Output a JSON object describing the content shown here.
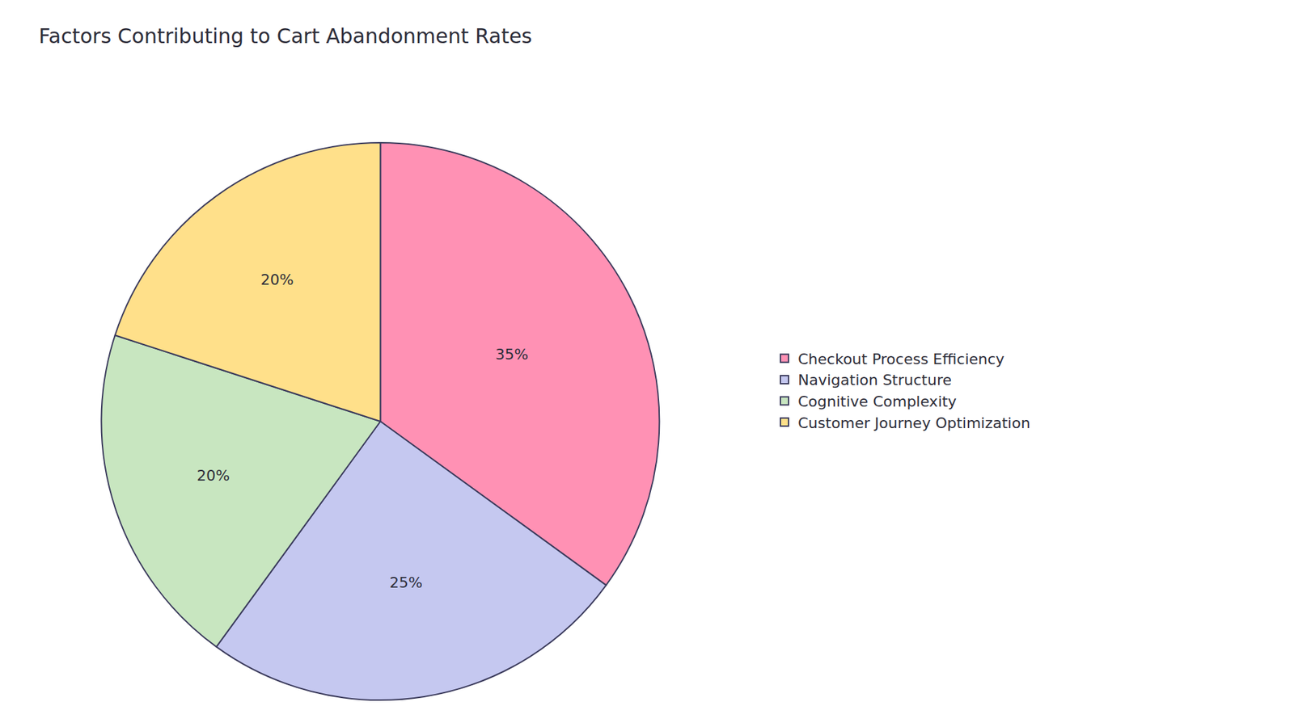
{
  "chart_data": {
    "type": "pie",
    "title": "Factors Contributing to Cart Abandonment Rates",
    "categories": [
      "Checkout Process Efficiency",
      "Navigation Structure",
      "Cognitive Complexity",
      "Customer Journey Optimization"
    ],
    "values": [
      35,
      25,
      20,
      20
    ],
    "value_labels": [
      "35%",
      "25%",
      "20%",
      "20%"
    ],
    "colors": [
      "#FF91B4",
      "#C5C8F0",
      "#C8E6C0",
      "#FFE08A"
    ],
    "data_labels": true,
    "legend": "right"
  }
}
